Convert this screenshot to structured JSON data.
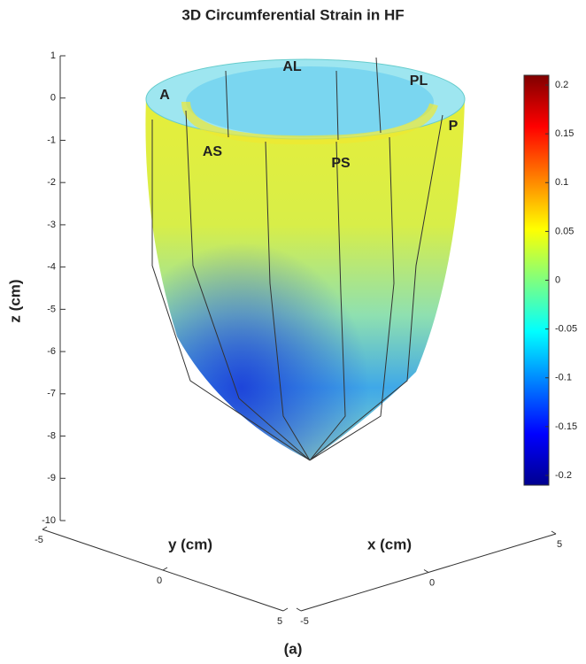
{
  "chart_data": {
    "type": "surface3d",
    "title": "3D Circumferential Strain in HF",
    "xlabel": "x (cm)",
    "ylabel": "y (cm)",
    "zlabel": "z (cm)",
    "xlim": [
      -5,
      5
    ],
    "xticks": [
      -5,
      0,
      5
    ],
    "ylim": [
      -5,
      5
    ],
    "yticks": [
      -5,
      0,
      5
    ],
    "zlim": [
      -10,
      1
    ],
    "zticks": [
      1,
      0,
      -1,
      -2,
      -3,
      -4,
      -5,
      -6,
      -7,
      -8,
      -9,
      -10
    ],
    "clim": [
      -0.21,
      0.21
    ],
    "cticks": [
      0.2,
      0.15,
      0.1,
      0.05,
      0,
      -0.05,
      -0.1,
      -0.15,
      -0.2
    ],
    "colormap": "jet",
    "regions": [
      "A",
      "AL",
      "PL",
      "P",
      "AS",
      "PS"
    ],
    "caption": "(a)"
  }
}
